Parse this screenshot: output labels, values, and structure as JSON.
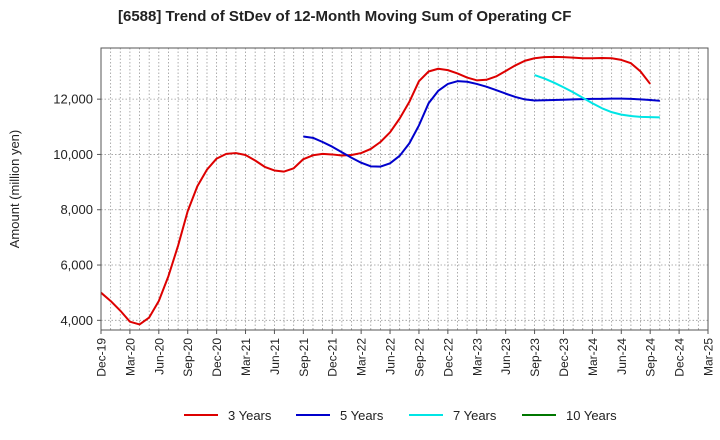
{
  "chart_data": {
    "type": "line",
    "title": "[6588]  Trend of StDev of 12-Month Moving Sum of Operating CF",
    "ylabel": "Amount (million yen)",
    "xlabel": "",
    "ylim": [
      3650,
      13850
    ],
    "y_ticks": [
      4000,
      6000,
      8000,
      10000,
      12000
    ],
    "y_tick_labels": [
      "4,000",
      "6,000",
      "8,000",
      "10,000",
      "12,000"
    ],
    "x_tick_labels": [
      "Dec-19",
      "Mar-20",
      "Jun-20",
      "Sep-20",
      "Dec-20",
      "Mar-21",
      "Jun-21",
      "Sep-21",
      "Dec-21",
      "Mar-22",
      "Jun-22",
      "Sep-22",
      "Dec-22",
      "Mar-23",
      "Jun-23",
      "Sep-23",
      "Dec-23",
      "Mar-24",
      "Jun-24",
      "Sep-24",
      "Dec-24",
      "Mar-25"
    ],
    "grid": true,
    "legend_position": "bottom",
    "series": [
      {
        "name": "3 Years",
        "color": "#dd0000",
        "start_month_index": 0,
        "values": [
          5000,
          4700,
          4350,
          3950,
          3850,
          4100,
          4700,
          5600,
          6700,
          7950,
          8850,
          9450,
          9850,
          10020,
          10050,
          9980,
          9780,
          9550,
          9420,
          9380,
          9500,
          9830,
          9970,
          10020,
          10000,
          9960,
          9980,
          10050,
          10200,
          10450,
          10800,
          11300,
          11900,
          12650,
          13000,
          13100,
          13050,
          12930,
          12780,
          12680,
          12700,
          12820,
          13020,
          13220,
          13390,
          13480,
          13520,
          13530,
          13520,
          13500,
          13480,
          13480,
          13490,
          13480,
          13420,
          13300,
          13000,
          12550
        ]
      },
      {
        "name": "5 Years",
        "color": "#0000cc",
        "start_month_index": 21,
        "values": [
          10650,
          10600,
          10450,
          10280,
          10080,
          9880,
          9700,
          9570,
          9560,
          9680,
          9950,
          10400,
          11050,
          11850,
          12300,
          12550,
          12650,
          12630,
          12550,
          12450,
          12330,
          12200,
          12080,
          11990,
          11950,
          11960,
          11970,
          11980,
          11990,
          12000,
          12010,
          12010,
          12020,
          12020,
          12010,
          11990,
          11970,
          11940
        ]
      },
      {
        "name": "7 Years",
        "color": "#00e5e5",
        "start_month_index": 45,
        "values": [
          12870,
          12750,
          12600,
          12430,
          12250,
          12050,
          11850,
          11670,
          11530,
          11440,
          11390,
          11360,
          11350,
          11340
        ]
      },
      {
        "name": "10 Years",
        "color": "#007700",
        "start_month_index": null,
        "values": []
      }
    ]
  }
}
